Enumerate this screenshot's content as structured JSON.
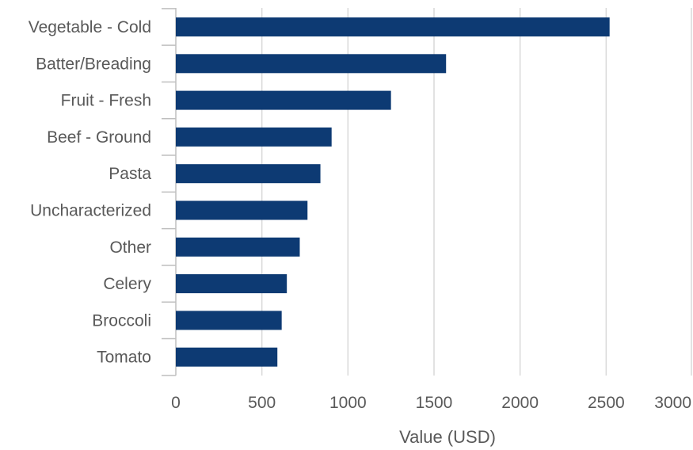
{
  "chart_data": {
    "type": "bar",
    "orientation": "horizontal",
    "categories": [
      "Vegetable - Cold",
      "Batter/Breading",
      "Fruit - Fresh",
      "Beef - Ground",
      "Pasta",
      "Uncharacterized",
      "Other",
      "Celery",
      "Broccoli",
      "Tomato"
    ],
    "values": [
      2520,
      1570,
      1250,
      905,
      840,
      765,
      720,
      645,
      615,
      590
    ],
    "xlabel": "Value (USD)",
    "ylabel": "",
    "title": "",
    "xlim": [
      0,
      3000
    ],
    "xticks": [
      "0",
      "500",
      "1000",
      "1500",
      "2000",
      "2500",
      "3000"
    ],
    "grid": "vertical",
    "legend": "none",
    "bar_color": "#0d3a73",
    "grid_color": "#d9d9d9",
    "text_color": "#595959"
  }
}
